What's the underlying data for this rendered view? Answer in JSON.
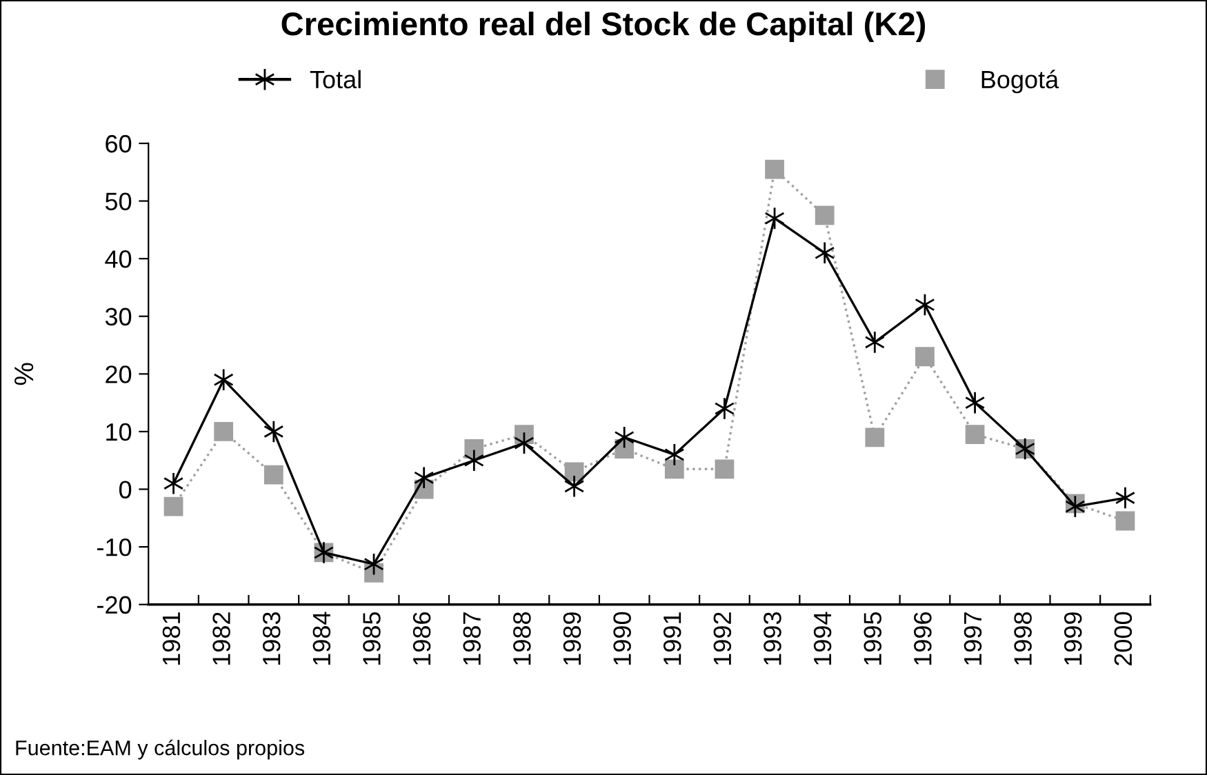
{
  "chart_data": {
    "type": "line",
    "title": "Crecimiento real del Stock de Capital (K2)",
    "ylabel": "%",
    "categories": [
      "1981",
      "1982",
      "1983",
      "1984",
      "1985",
      "1986",
      "1987",
      "1988",
      "1989",
      "1990",
      "1991",
      "1992",
      "1993",
      "1994",
      "1995",
      "1996",
      "1997",
      "1998",
      "1999",
      "2000"
    ],
    "series": [
      {
        "name": "Total",
        "color": "#000000",
        "marker": "cross",
        "line_style": "solid",
        "values": [
          1,
          19,
          10,
          -11,
          -13,
          2,
          5,
          8,
          0.5,
          9,
          6,
          14,
          47,
          41,
          25.5,
          32,
          15,
          7,
          -3,
          -1.5
        ]
      },
      {
        "name": "Bogotá",
        "color": "#a0a0a0",
        "marker": "square",
        "line_style": "dotted",
        "values": [
          -3,
          10,
          2.5,
          -11,
          -14.5,
          0,
          7,
          9.5,
          3,
          7,
          3.5,
          3.5,
          55.5,
          47.5,
          9,
          23,
          9.5,
          7,
          -2.5,
          -5.5
        ]
      }
    ],
    "ylim": [
      -20,
      60
    ],
    "yticks": [
      -20,
      -10,
      0,
      10,
      20,
      30,
      40,
      50,
      60
    ],
    "grid": false,
    "legend": "top",
    "annotations": [
      "Fuente:EAM y cálculos propios"
    ]
  }
}
